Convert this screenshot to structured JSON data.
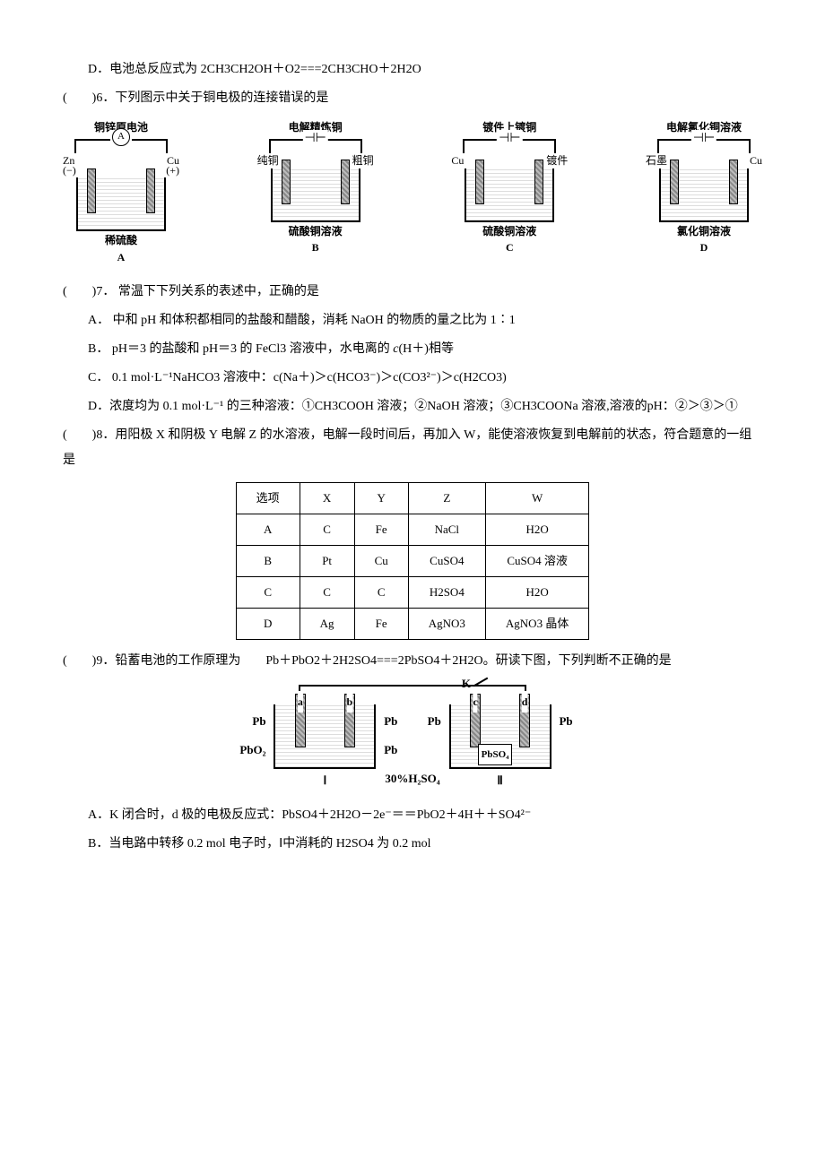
{
  "q5_d": "D．电池总反应式为 2CH3CH2OH＋O2===2CH3CHO＋2H2O",
  "q6": {
    "stem": "(　　)6．下列图示中关于铜电极的连接错误的是",
    "diagrams": [
      {
        "title": "铜锌原电池",
        "center_symbol": "A",
        "left": "Zn",
        "left2": "(−)",
        "right": "Cu",
        "right2": "(+)",
        "sol": "稀硫酸",
        "tag": "A"
      },
      {
        "title": "电解精炼铜",
        "center_symbol": "⊣⊢",
        "left": "纯铜",
        "left2": "",
        "right": "粗铜",
        "right2": "",
        "sol": "硫酸铜溶液",
        "tag": "B"
      },
      {
        "title": "镀件上镀铜",
        "center_symbol": "⊣⊢",
        "left": "Cu",
        "left2": "",
        "right": "镀件",
        "right2": "",
        "sol": "硫酸铜溶液",
        "tag": "C"
      },
      {
        "title": "电解氯化铜溶液",
        "center_symbol": "⊣⊢",
        "left": "石墨",
        "left2": "",
        "right": "Cu",
        "right2": "",
        "sol": "氯化铜溶液",
        "tag": "D"
      }
    ]
  },
  "q7": {
    "stem": "(　　)7．  常温下下列关系的表述中，正确的是",
    "a": "A．  中和 pH 和体积都相同的盐酸和醋酸，消耗 NaOH 的物质的量之比为 1∶1",
    "b_pre": "B．  pH＝3 的盐酸和 pH＝3 的 FeCl3 溶液中，水电离的 ",
    "b_ital": "c",
    "b_post": "(H＋)相等",
    "c": "C．  0.1 mol·L⁻¹NaHCO3 溶液中：c(Na＋)＞c(HCO3⁻)＞c(CO3²⁻)＞c(H2CO3)",
    "d": "D．浓度均为 0.1 mol·L⁻¹ 的三种溶液：①CH3COOH 溶液；②NaOH 溶液；③CH3COONa 溶液,溶液的pH：②＞③＞①"
  },
  "q8": {
    "stem": "(　　)8．用阳极 X 和阴极 Y 电解 Z 的水溶液，电解一段时间后，再加入 W，能使溶液恢复到电解前的状态，符合题意的一组是",
    "headers": [
      "选项",
      "X",
      "Y",
      "Z",
      "W"
    ],
    "rows": [
      [
        "A",
        "C",
        "Fe",
        "NaCl",
        "H2O"
      ],
      [
        "B",
        "Pt",
        "Cu",
        "CuSO4",
        "CuSO4 溶液"
      ],
      [
        "C",
        "C",
        "C",
        "H2SO4",
        "H2O"
      ],
      [
        "D",
        "Ag",
        "Fe",
        "AgNO3",
        "AgNO3 晶体"
      ]
    ]
  },
  "q9": {
    "stem": "(　　)9．铅蓄电池的工作原理为　　Pb＋PbO2＋2H2SO4===2PbSO4＋2H2O。研读下图，下列判断不正确的是",
    "fig": {
      "switch": "K",
      "cell1": {
        "elecs": [
          "a",
          "b"
        ],
        "left_top": "Pb",
        "right_top": "Pb",
        "left_bot": "PbO₂",
        "right_bot": "Pb",
        "label": "Ⅰ"
      },
      "mid": "30%H₂SO₄",
      "cell2": {
        "elecs": [
          "c",
          "d"
        ],
        "left_top": "Pb",
        "right_top": "Pb",
        "bottom": "PbSO₄",
        "label": "Ⅱ"
      }
    },
    "a": "A．K 闭合时，d 极的电极反应式：PbSO4＋2H2O－2e⁻＝＝PbO2＋4H＋＋SO4²⁻",
    "b": "B．当电路中转移 0.2 mol 电子时，Ⅰ中消耗的 H2SO4 为 0.2 mol"
  }
}
